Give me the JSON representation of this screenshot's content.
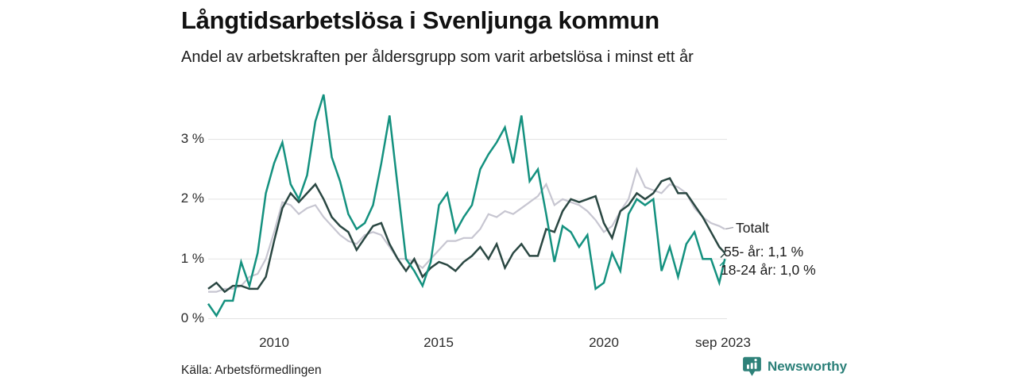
{
  "header": {
    "title": "Långtidsarbetslösa i Svenljunga kommun",
    "subtitle": "Andel av arbetskraften per åldersgrupp som varit arbetslösa i minst ett år"
  },
  "footer": {
    "source": "Källa: Arbetsförmedlingen",
    "brand": "Newsworthy",
    "brand_color": "#2a7f78",
    "logo_icon": "newsworthy-bar-chart-bubble"
  },
  "chart_data": {
    "type": "line",
    "title": "Långtidsarbetslösa i Svenljunga kommun",
    "subtitle": "Andel av arbetskraften per åldersgrupp som varit arbetslösa i minst ett år",
    "xlabel": "",
    "ylabel": "",
    "grid": "horizontal",
    "legend_position": "right-end-labels",
    "x_range": [
      2008,
      2023.75
    ],
    "y_range": [
      0,
      3.9
    ],
    "x_ticks": [
      2010,
      2015,
      2020,
      2023.67
    ],
    "x_tick_labels": [
      "2010",
      "2015",
      "2020",
      "sep 2023"
    ],
    "y_ticks": [
      0,
      1,
      2,
      3
    ],
    "y_tick_labels": [
      "0 %",
      "1 %",
      "2 %",
      "3 %"
    ],
    "x": [
      2008,
      2008.25,
      2008.5,
      2008.75,
      2009,
      2009.25,
      2009.5,
      2009.75,
      2010,
      2010.25,
      2010.5,
      2010.75,
      2011,
      2011.25,
      2011.5,
      2011.75,
      2012,
      2012.25,
      2012.5,
      2012.75,
      2013,
      2013.25,
      2013.5,
      2013.75,
      2014,
      2014.25,
      2014.5,
      2014.75,
      2015,
      2015.25,
      2015.5,
      2015.75,
      2016,
      2016.25,
      2016.5,
      2016.75,
      2017,
      2017.25,
      2017.5,
      2017.75,
      2018,
      2018.25,
      2018.5,
      2018.75,
      2019,
      2019.25,
      2019.5,
      2019.75,
      2020,
      2020.25,
      2020.5,
      2020.75,
      2021,
      2021.25,
      2021.5,
      2021.75,
      2022,
      2022.25,
      2022.5,
      2022.75,
      2023,
      2023.25,
      2023.5,
      2023.67
    ],
    "series": [
      {
        "name": "Totalt",
        "end_label": "Totalt",
        "end_value": null,
        "color": "#c7c6d1",
        "values": [
          0.45,
          0.45,
          0.5,
          0.5,
          0.55,
          0.7,
          0.75,
          1.0,
          1.45,
          1.95,
          1.9,
          1.75,
          1.85,
          1.9,
          1.7,
          1.55,
          1.4,
          1.3,
          1.25,
          1.4,
          1.45,
          1.4,
          1.2,
          1.0,
          1.0,
          0.95,
          0.85,
          1.0,
          1.15,
          1.3,
          1.3,
          1.35,
          1.35,
          1.5,
          1.75,
          1.7,
          1.8,
          1.75,
          1.85,
          1.95,
          2.05,
          2.25,
          1.9,
          2.0,
          1.95,
          1.9,
          1.8,
          1.65,
          1.45,
          1.55,
          1.8,
          2.0,
          2.5,
          2.2,
          2.15,
          2.1,
          2.25,
          2.2,
          2.1,
          1.85,
          1.7,
          1.6,
          1.55,
          1.5
        ]
      },
      {
        "name": "55- år",
        "end_label": "55- år: 1,1 %",
        "end_value": 1.1,
        "color": "#2a4742",
        "values": [
          0.5,
          0.6,
          0.45,
          0.55,
          0.55,
          0.5,
          0.5,
          0.7,
          1.3,
          1.85,
          2.1,
          1.95,
          2.1,
          2.25,
          2.0,
          1.7,
          1.55,
          1.45,
          1.15,
          1.35,
          1.55,
          1.6,
          1.25,
          1.0,
          0.8,
          1.0,
          0.7,
          0.85,
          0.95,
          0.9,
          0.8,
          0.95,
          1.05,
          1.2,
          1.0,
          1.25,
          0.85,
          1.1,
          1.25,
          1.05,
          1.05,
          1.5,
          1.45,
          1.8,
          2.0,
          1.95,
          2.0,
          2.05,
          1.6,
          1.35,
          1.8,
          1.9,
          2.1,
          2.0,
          2.1,
          2.3,
          2.35,
          2.1,
          2.1,
          1.9,
          1.7,
          1.45,
          1.2,
          1.1
        ]
      },
      {
        "name": "18-24 år",
        "end_label": "18-24 år: 1,0 %",
        "end_value": 1.0,
        "color": "#14917f",
        "values": [
          0.25,
          0.05,
          0.3,
          0.3,
          0.95,
          0.55,
          1.1,
          2.1,
          2.6,
          2.95,
          2.25,
          2.0,
          2.4,
          3.3,
          3.75,
          2.7,
          2.3,
          1.75,
          1.5,
          1.6,
          1.9,
          2.6,
          3.4,
          2.2,
          1.0,
          0.8,
          0.55,
          0.95,
          1.9,
          2.1,
          1.45,
          1.7,
          1.9,
          2.5,
          2.75,
          2.95,
          3.2,
          2.6,
          3.4,
          2.3,
          2.5,
          1.75,
          0.95,
          1.55,
          1.45,
          1.2,
          1.4,
          0.5,
          0.6,
          1.1,
          0.8,
          1.75,
          2.0,
          1.9,
          2.0,
          0.8,
          1.2,
          0.7,
          1.25,
          1.45,
          1.0,
          1.0,
          0.6,
          1.0
        ]
      }
    ]
  }
}
